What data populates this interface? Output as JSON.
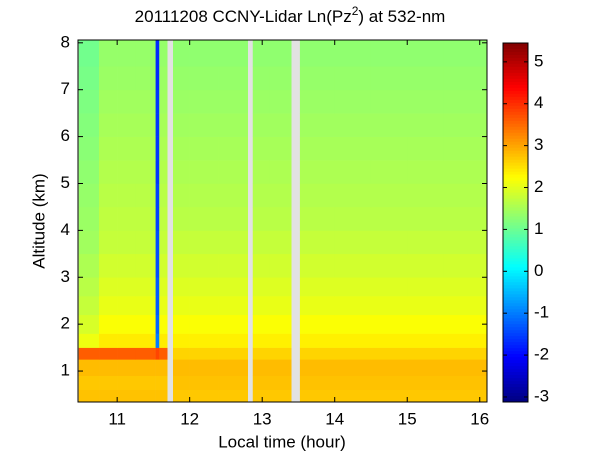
{
  "chart_data": {
    "type": "heatmap",
    "title": [
      "20111208 CCNY-Lidar Ln(Pz",
      "2",
      ") at 532-nm"
    ],
    "xlabel": "Local time (hour)",
    "ylabel": "Altitude (km)",
    "colormap": "jet",
    "xlim": [
      10.46,
      16.1
    ],
    "xticks": [
      11,
      12,
      13,
      14,
      15,
      16
    ],
    "ylim": [
      0.34,
      8.06
    ],
    "yticks": [
      1,
      2,
      3,
      4,
      5,
      6,
      7,
      8
    ],
    "zlim": [
      -3.12,
      5.45
    ],
    "zticks": [
      -3,
      -2,
      -1,
      0,
      1,
      2,
      3,
      4,
      5
    ],
    "x_edges": [
      10.47,
      10.75,
      11.0,
      11.25,
      11.5,
      11.53,
      11.58,
      11.69,
      11.77,
      12.0,
      12.4,
      12.8,
      12.87,
      13.1,
      13.4,
      13.52,
      14.0,
      14.5,
      15.0,
      15.5,
      16.1
    ],
    "y_edges": [
      0.34,
      0.6,
      0.9,
      1.25,
      1.5,
      1.8,
      2.2,
      2.6,
      3.0,
      3.5,
      4.0,
      4.5,
      5.0,
      5.5,
      6.0,
      6.5,
      7.0,
      7.5,
      8.06
    ],
    "z": [
      [
        2.75,
        2.75,
        2.75,
        2.75,
        2.75,
        2.75,
        2.75,
        null,
        2.7,
        2.7,
        2.7,
        null,
        2.7,
        2.7,
        null,
        2.7,
        2.7,
        2.7,
        2.7,
        2.7
      ],
      [
        2.7,
        2.7,
        2.7,
        2.7,
        2.7,
        2.7,
        2.7,
        null,
        2.75,
        2.75,
        2.75,
        null,
        2.75,
        2.75,
        null,
        2.75,
        2.75,
        2.75,
        2.75,
        2.75
      ],
      [
        2.8,
        2.8,
        2.8,
        2.8,
        2.8,
        2.8,
        2.8,
        null,
        2.8,
        2.8,
        2.8,
        null,
        2.8,
        2.8,
        null,
        2.8,
        2.8,
        2.8,
        2.8,
        2.8
      ],
      [
        3.6,
        3.6,
        3.6,
        3.6,
        3.6,
        3.8,
        3.6,
        null,
        2.6,
        2.6,
        2.6,
        null,
        2.6,
        2.6,
        null,
        2.6,
        2.6,
        2.6,
        2.6,
        2.6
      ],
      [
        2.1,
        2.4,
        2.4,
        2.4,
        2.4,
        -1.0,
        2.4,
        null,
        2.35,
        2.35,
        2.35,
        null,
        2.35,
        2.35,
        null,
        2.35,
        2.35,
        2.35,
        2.35,
        2.35
      ],
      [
        1.9,
        2.2,
        2.2,
        2.2,
        2.2,
        -1.2,
        2.2,
        null,
        2.2,
        2.2,
        2.2,
        null,
        2.2,
        2.2,
        null,
        2.2,
        2.2,
        2.2,
        2.2,
        2.2
      ],
      [
        1.75,
        2.05,
        2.05,
        2.05,
        2.05,
        -1.3,
        2.05,
        null,
        2.05,
        2.05,
        2.05,
        null,
        2.05,
        2.05,
        null,
        2.05,
        2.05,
        2.05,
        2.05,
        2.05
      ],
      [
        1.65,
        1.95,
        1.95,
        1.95,
        1.95,
        -1.3,
        1.95,
        null,
        1.95,
        1.95,
        1.95,
        null,
        1.95,
        1.95,
        null,
        1.95,
        1.95,
        1.95,
        1.95,
        1.95
      ],
      [
        1.55,
        1.85,
        1.85,
        1.85,
        1.85,
        -1.4,
        1.85,
        null,
        1.85,
        1.85,
        1.85,
        null,
        1.85,
        1.85,
        null,
        1.85,
        1.85,
        1.85,
        1.85,
        1.85
      ],
      [
        1.45,
        1.75,
        1.75,
        1.75,
        1.75,
        -1.4,
        1.75,
        null,
        1.75,
        1.75,
        1.75,
        null,
        1.75,
        1.75,
        null,
        1.75,
        1.75,
        1.75,
        1.75,
        1.75
      ],
      [
        1.4,
        1.7,
        1.7,
        1.7,
        1.7,
        -1.5,
        1.7,
        null,
        1.65,
        1.65,
        1.65,
        null,
        1.65,
        1.65,
        null,
        1.65,
        1.65,
        1.65,
        1.65,
        1.65
      ],
      [
        1.35,
        1.65,
        1.65,
        1.65,
        1.65,
        -1.5,
        1.65,
        null,
        1.6,
        1.6,
        1.6,
        null,
        1.6,
        1.6,
        null,
        1.6,
        1.6,
        1.6,
        1.6,
        1.6
      ],
      [
        1.3,
        1.6,
        1.6,
        1.6,
        1.6,
        -1.6,
        1.6,
        null,
        1.55,
        1.55,
        1.55,
        null,
        1.55,
        1.55,
        null,
        1.55,
        1.55,
        1.55,
        1.55,
        1.55
      ],
      [
        1.25,
        1.55,
        1.55,
        1.55,
        1.55,
        -1.6,
        1.55,
        null,
        1.5,
        1.5,
        1.5,
        null,
        1.5,
        1.5,
        null,
        1.5,
        1.5,
        1.5,
        1.5,
        1.5
      ],
      [
        1.2,
        1.5,
        1.5,
        1.5,
        1.5,
        -1.6,
        1.5,
        null,
        1.45,
        1.45,
        1.45,
        null,
        1.45,
        1.45,
        null,
        1.45,
        1.45,
        1.45,
        1.45,
        1.45
      ],
      [
        1.15,
        1.45,
        1.45,
        1.45,
        1.45,
        -1.6,
        1.45,
        null,
        1.4,
        1.4,
        1.4,
        null,
        1.4,
        1.4,
        null,
        1.4,
        1.4,
        1.4,
        1.4,
        1.4
      ],
      [
        1.1,
        1.4,
        1.4,
        1.4,
        1.4,
        -1.7,
        1.4,
        null,
        1.35,
        1.35,
        1.35,
        null,
        1.35,
        1.35,
        null,
        1.35,
        1.35,
        1.35,
        1.35,
        1.35
      ],
      [
        1.05,
        1.35,
        1.35,
        1.35,
        1.35,
        -1.7,
        1.35,
        null,
        1.3,
        1.3,
        1.3,
        null,
        1.3,
        1.3,
        null,
        1.3,
        1.3,
        1.3,
        1.3,
        1.3
      ]
    ]
  }
}
